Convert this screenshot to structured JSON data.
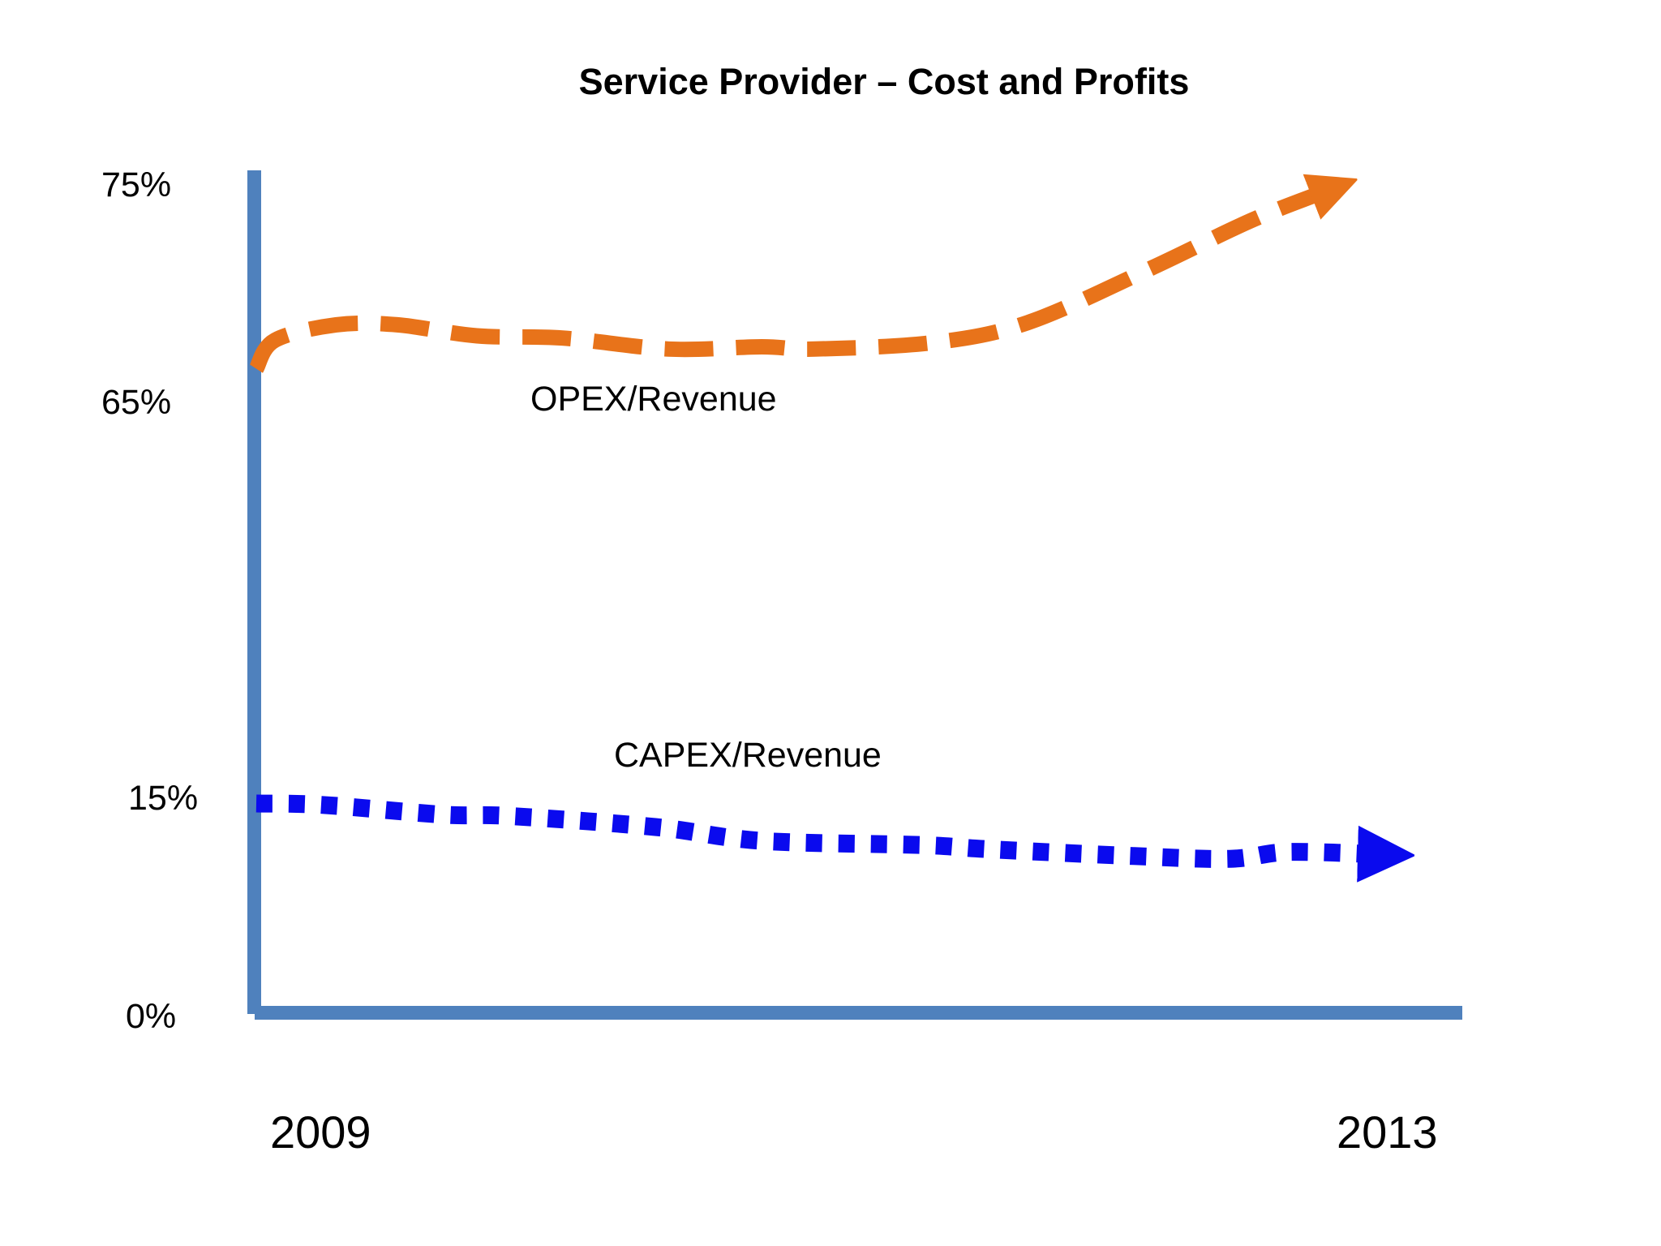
{
  "chart_data": {
    "type": "line",
    "title": "Service Provider – Cost and Profits",
    "xlabel": "",
    "ylabel": "",
    "x_ticks": [
      "2009",
      "2013"
    ],
    "y_ticks": [
      "75%",
      "65%",
      "15%",
      "0%"
    ],
    "grid": false,
    "series": [
      {
        "name": "OPEX/Revenue",
        "color": "#e8731a",
        "style": "dashed-arrow",
        "points": [
          [
            2009.0,
            66.6
          ],
          [
            2009.07,
            67.9
          ],
          [
            2009.3,
            68.6
          ],
          [
            2009.53,
            68.6
          ],
          [
            2009.83,
            68.1
          ],
          [
            2010.15,
            68.0
          ],
          [
            2010.55,
            67.5
          ],
          [
            2010.9,
            67.6
          ],
          [
            2011.1,
            67.5
          ],
          [
            2011.55,
            67.8
          ],
          [
            2011.9,
            68.7
          ],
          [
            2012.35,
            71.1
          ],
          [
            2012.75,
            73.4
          ],
          [
            2013.07,
            74.9
          ]
        ]
      },
      {
        "name": "CAPEX/Revenue",
        "color": "#0a0aee",
        "style": "dotted-arrow",
        "points": [
          [
            2009.0,
            15.1
          ],
          [
            2009.25,
            15.0
          ],
          [
            2009.7,
            14.3
          ],
          [
            2009.95,
            14.2
          ],
          [
            2010.5,
            13.4
          ],
          [
            2010.9,
            12.4
          ],
          [
            2011.5,
            12.1
          ],
          [
            2011.75,
            11.8
          ],
          [
            2012.3,
            11.3
          ],
          [
            2012.66,
            11.1
          ],
          [
            2012.88,
            11.6
          ],
          [
            2013.25,
            11.4
          ]
        ]
      }
    ]
  }
}
